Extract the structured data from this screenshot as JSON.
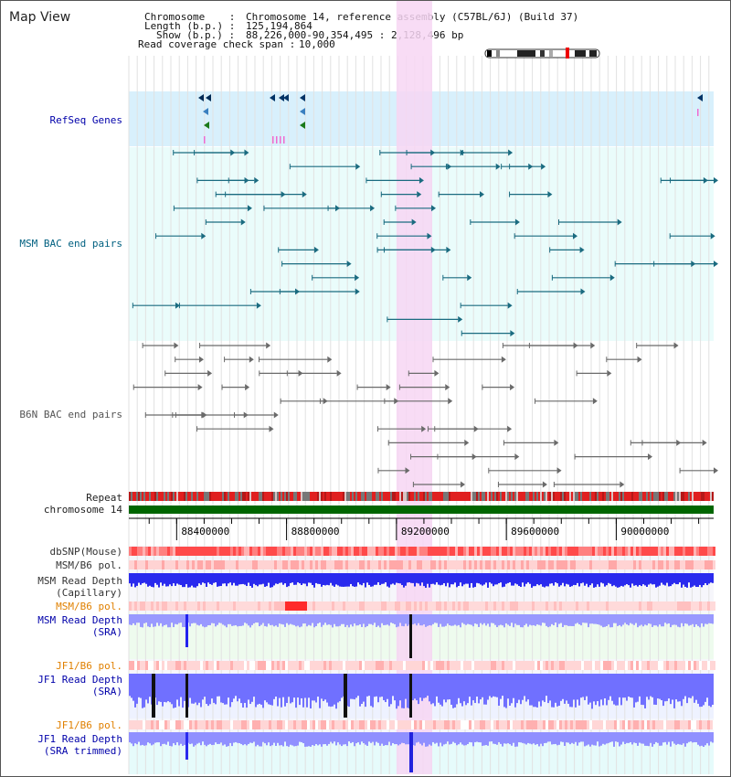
{
  "title": "Map View",
  "info": {
    "chromosome_label": "Chromosome    :",
    "chromosome_value": "Chromosome 14, reference assembly (C57BL/6J) (Build 37)",
    "length_label": "Length (b.p.) :",
    "length_value": "125,194,864",
    "show_label": "Show (b.p.) :",
    "show_value": "88,226,000-90,354,495 : 2,128,496 bp",
    "read_coverage_label": "Read coverage check span :",
    "read_coverage_value": "10,000"
  },
  "tracks": {
    "refseq": "RefSeq Genes",
    "msm_bac": "MSM BAC end pairs",
    "b6n_bac": "B6N BAC end pairs",
    "repeat": "Repeat",
    "chromosome": "chromosome 14",
    "dbsnp": "dbSNP(Mouse)",
    "msm_b6_pol_1": "MSM/B6 pol.",
    "msm_read_depth_cap": "MSM Read Depth\n(Capillary)",
    "msm_b6_pol_2": "MSM/B6 pol.",
    "msm_read_depth_sra": "MSM Read Depth\n(SRA)",
    "jf1_b6_pol_1": "JF1/B6 pol.",
    "jf1_read_depth_sra": "JF1 Read Depth\n(SRA)",
    "jf1_b6_pol_2": "JF1/B6 pol.",
    "jf1_read_depth_trimmed": "JF1 Read Depth\n(SRA trimmed)"
  },
  "ruler": {
    "ticks": [
      "88400000",
      "88800000",
      "89200000",
      "89600000",
      "90000000"
    ]
  },
  "view_range": {
    "start": 88226000,
    "end": 90354495
  },
  "highlight_range": {
    "start": 89200000,
    "end": 89330000
  },
  "colors": {
    "refseq_bg": "#d8f0fc",
    "msm_bac_bg": "#eafcfb",
    "highlight": "#f7d6f3",
    "msm_bac_line": "#1a6b80",
    "b6n_bac_line": "#6a6a6a",
    "chromosome_bar": "#006600",
    "repeat_red": "#e02020",
    "dbsnp_red": "#ff4444",
    "depth_blue": "#3030ff",
    "depth_light": "#9090ff"
  }
}
